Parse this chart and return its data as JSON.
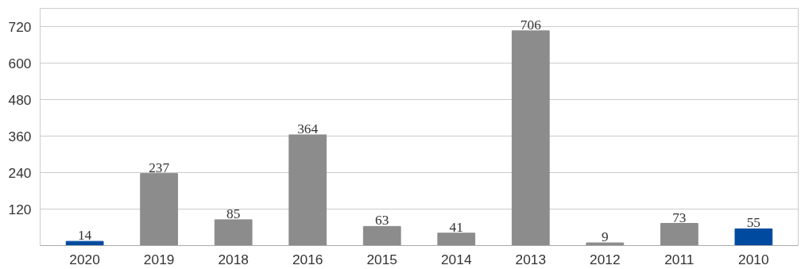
{
  "chart_data": {
    "type": "bar",
    "categories": [
      "2020",
      "2019",
      "2018",
      "2016",
      "2015",
      "2014",
      "2013",
      "2012",
      "2011",
      "2010"
    ],
    "values": [
      14,
      237,
      85,
      364,
      63,
      41,
      706,
      9,
      73,
      55
    ],
    "colors": [
      "#004a9f",
      "#8c8c8c",
      "#8c8c8c",
      "#8c8c8c",
      "#8c8c8c",
      "#8c8c8c",
      "#8c8c8c",
      "#8c8c8c",
      "#8c8c8c",
      "#004a9f"
    ],
    "data_labels": true,
    "ylim": [
      0,
      780
    ],
    "yticks": [
      {
        "value": 0,
        "label": null
      },
      120,
      240,
      360,
      480,
      600,
      720
    ],
    "grid": "y"
  }
}
